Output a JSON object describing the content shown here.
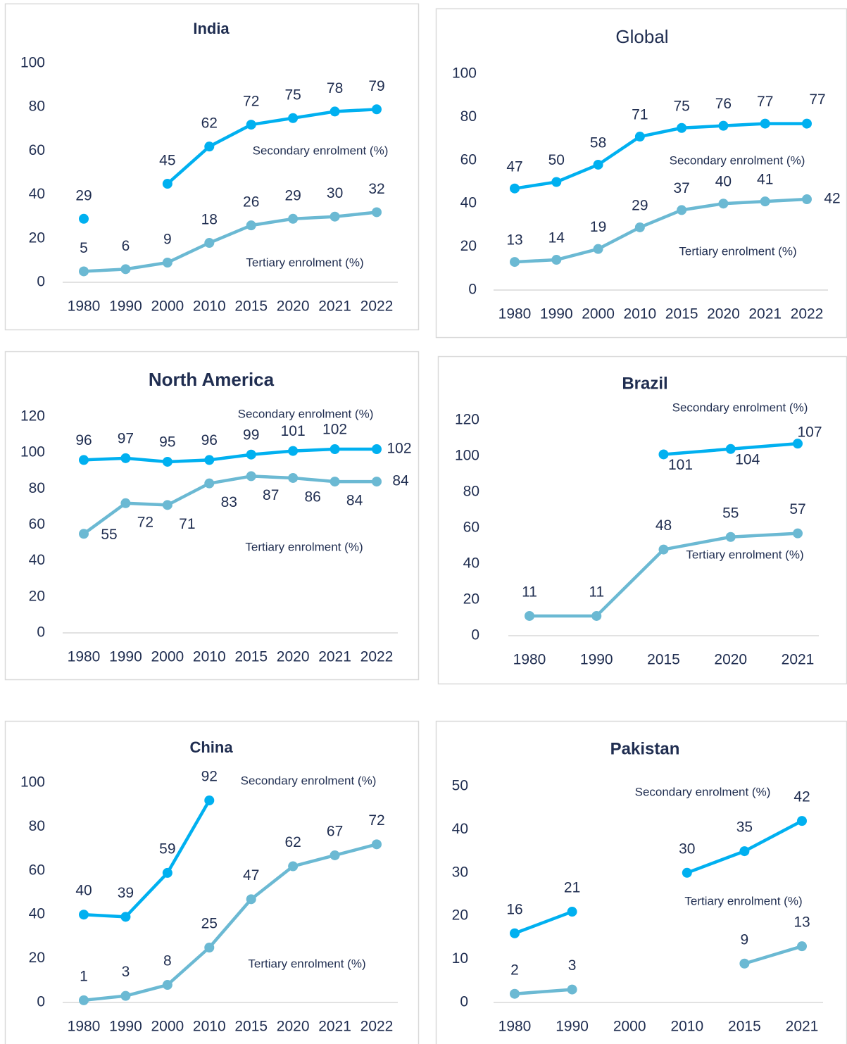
{
  "chart_data": [
    {
      "type": "line",
      "title": "India",
      "categories": [
        "1980",
        "1990",
        "2000",
        "2010",
        "2015",
        "2020",
        "2021",
        "2022"
      ],
      "series": [
        {
          "name": "Secondary enrolment (%)",
          "color": "#00b0f0",
          "values": [
            29,
            null,
            45,
            62,
            72,
            75,
            78,
            79
          ]
        },
        {
          "name": "Tertiary enrolment (%)",
          "color": "#6bb9d3",
          "values": [
            5,
            6,
            9,
            18,
            26,
            29,
            30,
            32
          ]
        }
      ],
      "ylim": [
        0,
        100
      ],
      "yticks": [
        0,
        20,
        40,
        60,
        80,
        100
      ]
    },
    {
      "type": "line",
      "title": "Global",
      "categories": [
        "1980",
        "1990",
        "2000",
        "2010",
        "2015",
        "2020",
        "2021",
        "2022"
      ],
      "series": [
        {
          "name": "Secondary enrolment (%)",
          "color": "#00b0f0",
          "values": [
            47,
            50,
            58,
            71,
            75,
            76,
            77,
            77
          ]
        },
        {
          "name": "Tertiary enrolment (%)",
          "color": "#6bb9d3",
          "values": [
            13,
            14,
            19,
            29,
            37,
            40,
            41,
            42
          ]
        }
      ],
      "ylim": [
        0,
        100
      ],
      "yticks": [
        0,
        20,
        40,
        60,
        80,
        100
      ]
    },
    {
      "type": "line",
      "title": "North America",
      "categories": [
        "1980",
        "1990",
        "2000",
        "2010",
        "2015",
        "2020",
        "2021",
        "2022"
      ],
      "series": [
        {
          "name": "Secondary enrolment (%)",
          "color": "#00b0f0",
          "values": [
            96,
            97,
            95,
            96,
            99,
            101,
            102,
            102
          ]
        },
        {
          "name": "Tertiary enrolment (%)",
          "color": "#6bb9d3",
          "values": [
            55,
            72,
            71,
            83,
            87,
            86,
            84,
            84
          ]
        }
      ],
      "ylim": [
        0,
        120
      ],
      "yticks": [
        0,
        20,
        40,
        60,
        80,
        100,
        120
      ]
    },
    {
      "type": "line",
      "title": "Brazil",
      "categories": [
        "1980",
        "1990",
        "2015",
        "2020",
        "2021"
      ],
      "series": [
        {
          "name": "Secondary enrolment (%)",
          "color": "#00b0f0",
          "values": [
            null,
            null,
            101,
            104,
            107
          ]
        },
        {
          "name": "Tertiary enrolment (%)",
          "color": "#6bb9d3",
          "values": [
            11,
            11,
            48,
            55,
            57
          ]
        }
      ],
      "ylim": [
        0,
        120
      ],
      "yticks": [
        0,
        20,
        40,
        60,
        80,
        100,
        120
      ]
    },
    {
      "type": "line",
      "title": "China",
      "categories": [
        "1980",
        "1990",
        "2000",
        "2010",
        "2015",
        "2020",
        "2021",
        "2022"
      ],
      "series": [
        {
          "name": "Secondary enrolment (%)",
          "color": "#00b0f0",
          "values": [
            40,
            39,
            59,
            92,
            null,
            null,
            null,
            null
          ]
        },
        {
          "name": "Tertiary enrolment (%)",
          "color": "#6bb9d3",
          "values": [
            1,
            3,
            8,
            25,
            47,
            62,
            67,
            72
          ]
        }
      ],
      "ylim": [
        0,
        100
      ],
      "yticks": [
        0,
        20,
        40,
        60,
        80,
        100
      ]
    },
    {
      "type": "line",
      "title": "Pakistan",
      "categories": [
        "1980",
        "1990",
        "2000",
        "2010",
        "2015",
        "2021"
      ],
      "series": [
        {
          "name": "Secondary enrolment (%)",
          "color": "#00b0f0",
          "values": [
            16,
            21,
            null,
            30,
            35,
            42
          ]
        },
        {
          "name": "Tertiary enrolment (%)",
          "color": "#6bb9d3",
          "values": [
            2,
            3,
            null,
            null,
            9,
            13
          ]
        }
      ],
      "ylim": [
        0,
        50
      ],
      "yticks": [
        0,
        10,
        20,
        30,
        40,
        50
      ]
    }
  ]
}
